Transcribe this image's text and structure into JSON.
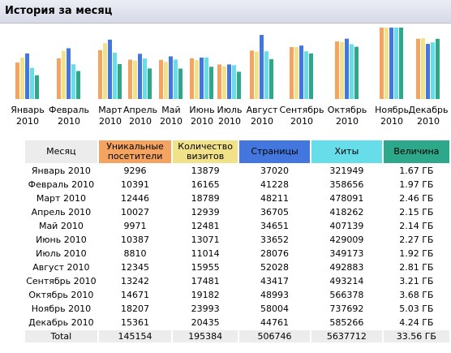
{
  "header": {
    "title": "История за месяц"
  },
  "colors": {
    "visitors": "#f4a460",
    "visits": "#f1e28a",
    "pages": "#4477dd",
    "hits": "#66dde9",
    "bandwidth": "#2ea88a",
    "month_header": "#ececec"
  },
  "chart_data": {
    "type": "bar",
    "categories": [
      "Январь 2010",
      "Февраль 2010",
      "Март 2010",
      "Апрель 2010",
      "Май 2010",
      "Июнь 2010",
      "Июль 2010",
      "Август 2010",
      "Сентябрь 2010",
      "Октябрь 2010",
      "Ноябрь 2010",
      "Декабрь 2010"
    ],
    "series": [
      {
        "name": "Уникальные посетители",
        "values": [
          9296,
          10391,
          12446,
          10027,
          9971,
          10387,
          8810,
          12345,
          13242,
          14671,
          18207,
          15361
        ]
      },
      {
        "name": "Количество визитов",
        "values": [
          13879,
          16165,
          18789,
          12939,
          12481,
          13071,
          11014,
          15955,
          17481,
          19182,
          23993,
          20435
        ]
      },
      {
        "name": "Страницы",
        "values": [
          37020,
          41228,
          48211,
          36705,
          34651,
          33652,
          28076,
          52028,
          43417,
          48993,
          58004,
          44761
        ]
      },
      {
        "name": "Хиты",
        "values": [
          321949,
          358656,
          478091,
          418262,
          407139,
          429009,
          349173,
          492883,
          493214,
          566378,
          737692,
          585266
        ]
      },
      {
        "name": "Величина",
        "values": [
          1.67,
          1.97,
          2.46,
          2.15,
          2.14,
          2.27,
          1.92,
          2.81,
          3.21,
          3.68,
          5.03,
          4.24
        ]
      }
    ]
  },
  "table": {
    "headers": {
      "month": "Месяц",
      "visitors": "Уникальные посетители",
      "visits": "Количество визитов",
      "pages": "Страницы",
      "hits": "Хиты",
      "bandwidth": "Величина"
    },
    "rows": [
      {
        "month": "Январь 2010",
        "visitors": "9296",
        "visits": "13879",
        "pages": "37020",
        "hits": "321949",
        "bandwidth": "1.67 ГБ"
      },
      {
        "month": "Февраль 2010",
        "visitors": "10391",
        "visits": "16165",
        "pages": "41228",
        "hits": "358656",
        "bandwidth": "1.97 ГБ"
      },
      {
        "month": "Март 2010",
        "visitors": "12446",
        "visits": "18789",
        "pages": "48211",
        "hits": "478091",
        "bandwidth": "2.46 ГБ"
      },
      {
        "month": "Апрель 2010",
        "visitors": "10027",
        "visits": "12939",
        "pages": "36705",
        "hits": "418262",
        "bandwidth": "2.15 ГБ"
      },
      {
        "month": "Май 2010",
        "visitors": "9971",
        "visits": "12481",
        "pages": "34651",
        "hits": "407139",
        "bandwidth": "2.14 ГБ"
      },
      {
        "month": "Июнь 2010",
        "visitors": "10387",
        "visits": "13071",
        "pages": "33652",
        "hits": "429009",
        "bandwidth": "2.27 ГБ"
      },
      {
        "month": "Июль 2010",
        "visitors": "8810",
        "visits": "11014",
        "pages": "28076",
        "hits": "349173",
        "bandwidth": "1.92 ГБ"
      },
      {
        "month": "Август 2010",
        "visitors": "12345",
        "visits": "15955",
        "pages": "52028",
        "hits": "492883",
        "bandwidth": "2.81 ГБ"
      },
      {
        "month": "Сентябрь 2010",
        "visitors": "13242",
        "visits": "17481",
        "pages": "43417",
        "hits": "493214",
        "bandwidth": "3.21 ГБ"
      },
      {
        "month": "Октябрь 2010",
        "visitors": "14671",
        "visits": "19182",
        "pages": "48993",
        "hits": "566378",
        "bandwidth": "3.68 ГБ"
      },
      {
        "month": "Ноябрь 2010",
        "visitors": "18207",
        "visits": "23993",
        "pages": "58004",
        "hits": "737692",
        "bandwidth": "5.03 ГБ"
      },
      {
        "month": "Декабрь 2010",
        "visitors": "15361",
        "visits": "20435",
        "pages": "44761",
        "hits": "585266",
        "bandwidth": "4.24 ГБ"
      }
    ],
    "total": {
      "month": "Total",
      "visitors": "145154",
      "visits": "195384",
      "pages": "506746",
      "hits": "5637712",
      "bandwidth": "33.56 ГБ"
    }
  }
}
